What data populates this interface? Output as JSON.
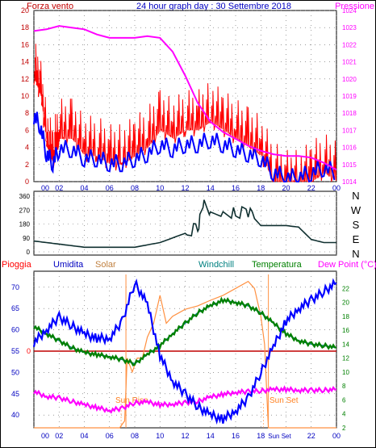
{
  "header": {
    "left_label": "Forza vento",
    "title": "24 hour graph day : 30 Settembre 2018",
    "right_label": "Pressione"
  },
  "middle": {
    "direction_letters": [
      "N",
      "W",
      "S",
      "E",
      "N"
    ]
  },
  "bottom_header": {
    "pioggia": "Pioggia",
    "umidita": "Umidita",
    "solar": "Solar",
    "windchill": "Windchill",
    "temperatura": "Temperatura",
    "dewpoint": "Dew Point (°C)"
  },
  "annotations": {
    "sunrise": "Sun Rise",
    "sunset": "Sun Set",
    "sunset_axis": "Sun Set"
  },
  "colors": {
    "wind": "#ff0000",
    "gust": "#0000ff",
    "pressure": "#ff00ff",
    "direction": "#103030",
    "humidity": "#0000ff",
    "solar": "#ff9040",
    "windchill": "#008080",
    "temperature": "#008000",
    "dewpoint": "#ff00ff",
    "rain": "#c00000"
  },
  "chart_data": [
    {
      "type": "line",
      "x_tick_labels": [
        "00",
        "02",
        "04",
        "06",
        "08",
        "10",
        "12",
        "14",
        "16",
        "18",
        "20",
        "22",
        "00"
      ],
      "y_left": {
        "ticks": [
          "0",
          "2",
          "4",
          "6",
          "8",
          "10",
          "12",
          "14",
          "16",
          "18",
          "20"
        ],
        "ylim": [
          0,
          20
        ]
      },
      "y_right": {
        "ticks": [
          "1014",
          "1015",
          "1016",
          "1017",
          "1018",
          "1019",
          "1020",
          "1021",
          "1022",
          "1023",
          "1024"
        ],
        "ylim": [
          1014,
          1024
        ]
      },
      "series": [
        {
          "name": "Forza vento",
          "axis": "left",
          "x": [
            0,
            0.5,
            1,
            1.5,
            2,
            3,
            4,
            5,
            6,
            7,
            8,
            9,
            10,
            11,
            12,
            13,
            14,
            15,
            16,
            17,
            18,
            19,
            20,
            21,
            22,
            23,
            24
          ],
          "values": [
            14,
            12,
            6,
            4,
            7,
            7,
            5,
            5,
            4,
            4,
            5,
            6,
            8,
            7,
            8,
            8,
            9,
            8,
            7,
            6,
            5,
            2,
            1,
            1,
            2,
            3,
            2
          ]
        },
        {
          "name": "Pressione",
          "axis": "right",
          "x": [
            0,
            1,
            2,
            3,
            4,
            5,
            6,
            7,
            8,
            9,
            10,
            11,
            12,
            13,
            14,
            15,
            16,
            17,
            18,
            19,
            20,
            21,
            22,
            23,
            24
          ],
          "values": [
            1022.8,
            1022.9,
            1023.1,
            1023.0,
            1022.9,
            1022.6,
            1022.4,
            1022.4,
            1022.4,
            1022.5,
            1022.4,
            1021.6,
            1020.2,
            1018.6,
            1017.5,
            1016.9,
            1016.5,
            1016.1,
            1015.8,
            1015.6,
            1015.5,
            1015.5,
            1015.4,
            1015.1,
            1014.7
          ]
        }
      ]
    },
    {
      "type": "line",
      "x_tick_labels": [],
      "y": {
        "ticks": [
          "0",
          "90",
          "180",
          "270",
          "360"
        ],
        "ylim": [
          0,
          360
        ]
      },
      "series": [
        {
          "name": "Direzione",
          "x": [
            0,
            1,
            2,
            3,
            4,
            5,
            6,
            7,
            8,
            9,
            10,
            11,
            12,
            13,
            13.5,
            14,
            15,
            16,
            17,
            18,
            19,
            20,
            21,
            22,
            23,
            24
          ],
          "values": [
            70,
            60,
            50,
            40,
            30,
            30,
            30,
            30,
            30,
            45,
            60,
            90,
            120,
            160,
            300,
            240,
            260,
            250,
            260,
            170,
            170,
            170,
            160,
            80,
            60,
            60
          ]
        }
      ]
    },
    {
      "type": "line",
      "x_tick_labels": [
        "00",
        "02",
        "04",
        "06",
        "08",
        "10",
        "12",
        "14",
        "16",
        "18",
        "Sun Set",
        "22",
        "00"
      ],
      "y_left": {
        "ticks": [
          "40",
          "45",
          "50",
          "55",
          "60",
          "65",
          "70"
        ],
        "ylim": [
          37,
          73
        ]
      },
      "y_right": {
        "ticks": [
          "2",
          "4",
          "6",
          "8",
          "10",
          "12",
          "14",
          "16",
          "18",
          "20",
          "22"
        ],
        "ylim": [
          2,
          24
        ]
      },
      "rain_label": "0",
      "series": [
        {
          "name": "Umidita",
          "axis": "left",
          "x": [
            0,
            1,
            2,
            3,
            4,
            5,
            6,
            7,
            8,
            9,
            10,
            11,
            12,
            13,
            14,
            15,
            16,
            17,
            18,
            19,
            20,
            21,
            22,
            23,
            24
          ],
          "values": [
            57,
            60,
            63,
            61,
            59,
            58,
            58,
            62,
            71,
            66,
            54,
            48,
            45,
            42,
            40,
            39,
            41,
            44,
            50,
            56,
            62,
            65,
            67,
            69,
            71
          ]
        },
        {
          "name": "Temperatura",
          "axis": "right",
          "x": [
            0,
            1,
            2,
            3,
            4,
            5,
            6,
            7,
            8,
            9,
            10,
            11,
            12,
            13,
            14,
            15,
            16,
            17,
            18,
            19,
            20,
            21,
            22,
            23,
            24
          ],
          "values": [
            16.5,
            15.5,
            14.5,
            13.5,
            12.8,
            12.5,
            12.2,
            11.8,
            11.2,
            12.5,
            13.8,
            15.5,
            17,
            18.5,
            19.5,
            20.3,
            20,
            19.5,
            18.5,
            17,
            15.5,
            14.5,
            14,
            13.8,
            13.5
          ]
        },
        {
          "name": "Windchill",
          "axis": "right",
          "x": [
            0,
            1,
            2,
            3,
            4,
            5,
            6,
            7,
            8,
            9,
            10,
            11,
            12,
            13,
            14,
            15,
            16,
            17,
            18,
            19,
            20,
            21,
            22,
            23,
            24
          ],
          "values": [
            16.5,
            15.5,
            14.5,
            13.5,
            12.8,
            12.5,
            12.2,
            11.8,
            11.2,
            12.5,
            13.8,
            15.5,
            17,
            18.5,
            19.5,
            20.3,
            20,
            19.5,
            18.5,
            17,
            15.5,
            14.5,
            14,
            13.8,
            13.5
          ]
        },
        {
          "name": "Dew Point (°C)",
          "axis": "right",
          "x": [
            0,
            1,
            2,
            3,
            4,
            5,
            6,
            7,
            8,
            9,
            10,
            11,
            12,
            13,
            14,
            15,
            16,
            17,
            18,
            19,
            20,
            21,
            22,
            23,
            24
          ],
          "values": [
            7.2,
            6.5,
            6.3,
            5.8,
            5.3,
            4.9,
            4.5,
            4.8,
            5.6,
            5.7,
            5.3,
            5.4,
            5.6,
            5.8,
            6.4,
            6.8,
            7.1,
            7.2,
            7.3,
            7.5,
            7.5,
            7.4,
            7.4,
            7.4,
            7.5
          ]
        },
        {
          "name": "Solar",
          "axis": "right",
          "x": [
            0,
            6.8,
            7.2,
            7.4,
            7.8,
            8.2,
            8.6,
            9,
            9.5,
            10,
            10.5,
            11,
            12,
            13,
            14,
            15,
            16,
            17,
            17.5,
            18,
            18.3,
            18.6,
            24
          ],
          "values": [
            2,
            2,
            3,
            12,
            10,
            12,
            12,
            15,
            17,
            21,
            17,
            18,
            19,
            19.5,
            20.3,
            21,
            22,
            23,
            22,
            18,
            14,
            2,
            2
          ]
        }
      ],
      "sunrise_hour": 7.3,
      "sunset_hour": 18.6
    }
  ]
}
